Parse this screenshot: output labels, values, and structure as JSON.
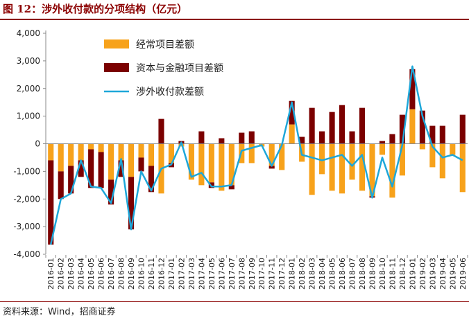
{
  "header": {
    "title": "图 12：涉外收付款的分项结构（亿元）"
  },
  "footer": {
    "source": "资料来源：Wind，招商证券"
  },
  "colors": {
    "current_account": "#f7a21b",
    "capital_financial": "#7b0000",
    "total_line": "#1ea7d9",
    "title": "#8b0000"
  },
  "chart_data": {
    "type": "bar",
    "stacked": true,
    "categories": [
      "2016-01",
      "2016-02",
      "2016-03",
      "2016-04",
      "2016-05",
      "2016-06",
      "2016-07",
      "2016-08",
      "2016-09",
      "2016-10",
      "2016-11",
      "2016-12",
      "2017-01",
      "2017-02",
      "2017-03",
      "2017-04",
      "2017-05",
      "2017-06",
      "2017-07",
      "2017-08",
      "2017-09",
      "2017-10",
      "2017-11",
      "2017-12",
      "2018-01",
      "2018-02",
      "2018-03",
      "2018-04",
      "2018-05",
      "2018-06",
      "2018-07",
      "2018-08",
      "2018-09",
      "2018-10",
      "2018-11",
      "2018-12",
      "2019-01",
      "2019-02",
      "2019-03",
      "2019-04",
      "2019-05",
      "2019-06"
    ],
    "series": [
      {
        "name": "经常项目差额",
        "kind": "bar",
        "values": [
          -600,
          -1000,
          -800,
          -600,
          -200,
          -300,
          -1300,
          -600,
          -1200,
          -500,
          -800,
          -1800,
          -700,
          -100,
          -1300,
          -1500,
          -1400,
          -1700,
          -1500,
          -700,
          -700,
          -100,
          -800,
          -950,
          700,
          -650,
          -1850,
          -1100,
          -1700,
          -1800,
          -1300,
          -1700,
          -1900,
          -400,
          -1950,
          -1150,
          1250,
          -200,
          -850,
          -1250,
          -400,
          -1750
        ]
      },
      {
        "name": "资本与金融项目差额",
        "kind": "bar",
        "values": [
          -3050,
          -1000,
          -1000,
          -600,
          -1400,
          -1300,
          -900,
          -600,
          -1900,
          -500,
          -950,
          900,
          -150,
          100,
          0,
          450,
          -200,
          200,
          -150,
          400,
          450,
          0,
          -100,
          0,
          850,
          250,
          1300,
          450,
          1150,
          1400,
          450,
          1300,
          -50,
          100,
          350,
          1050,
          1450,
          1200,
          650,
          650,
          0,
          1050
        ]
      },
      {
        "name": "涉外收付款差额",
        "kind": "line",
        "values": [
          -3650,
          -2000,
          -1800,
          -600,
          -1550,
          -1600,
          -2150,
          -550,
          -3100,
          -1000,
          -1700,
          -900,
          -750,
          50,
          -1200,
          -1050,
          -1550,
          -1550,
          -1500,
          -250,
          -150,
          -50,
          -800,
          -50,
          1500,
          -400,
          -500,
          -600,
          -500,
          -400,
          -800,
          -400,
          -1950,
          -500,
          -1550,
          -50,
          2800,
          1000,
          -100,
          -500,
          -400,
          -600
        ]
      }
    ],
    "ylim": [
      -4000,
      4000
    ],
    "yticks": [
      -4000,
      -3000,
      -2000,
      -1000,
      0,
      1000,
      2000,
      3000,
      4000
    ],
    "ytick_labels": [
      "-4,000",
      "-3,000",
      "-2,000",
      "-1,000",
      "0",
      "1,000",
      "2,000",
      "3,000",
      "4,000"
    ],
    "legend_position": "top-left",
    "grid": false
  }
}
